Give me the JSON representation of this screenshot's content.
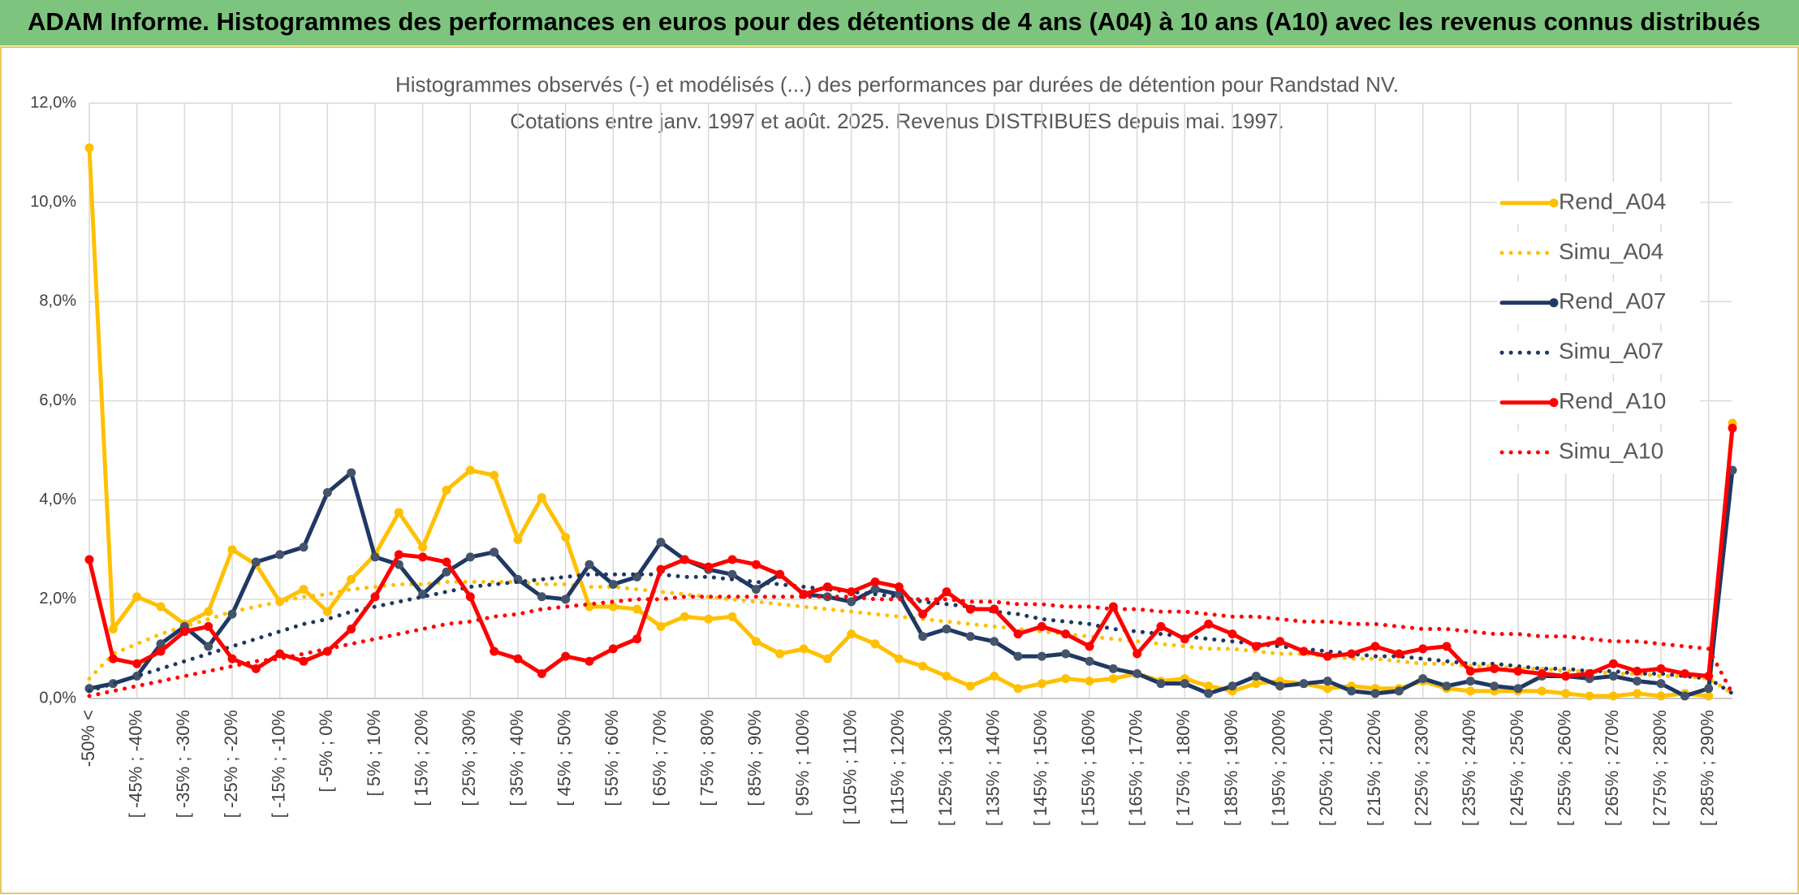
{
  "header": {
    "title": "ADAM Informe. Histogrammes des performances en euros pour des détentions de 4 ans (A04) à 10 ans (A10) avec les revenus connus distribués"
  },
  "chart_data": {
    "type": "line",
    "title": "Histogrammes observés (-) et modélisés (...) des performances par durées de détention pour Randstad NV.",
    "subtitle": "Cotations entre janv. 1997 et août. 2025. Revenus DISTRIBUES depuis mai. 1997.",
    "categories": [
      "-50% <",
      null,
      "[ -45% ; -40%",
      null,
      "[ -35% ; -30%",
      null,
      "[ -25% ; -20%",
      null,
      "[ -15% ; -10%",
      null,
      "[ -5% ; 0%",
      null,
      "[ 5% ; 10%",
      null,
      "[ 15% ; 20%",
      null,
      "[ 25% ; 30%",
      null,
      "[ 35% ; 40%",
      null,
      "[ 45% ; 50%",
      null,
      "[ 55% ; 60%",
      null,
      "[ 65% ; 70%",
      null,
      "[ 75% ; 80%",
      null,
      "[ 85% ; 90%",
      null,
      "[ 95% ; 100%",
      null,
      "[ 105% ; 110%",
      null,
      "[ 115% ; 120%",
      null,
      "[ 125% ; 130%",
      null,
      "[ 135% ; 140%",
      null,
      "[ 145% ; 150%",
      null,
      "[ 155% ; 160%",
      null,
      "[ 165% ; 170%",
      null,
      "[ 175% ; 180%",
      null,
      "[ 185% ; 190%",
      null,
      "[ 195% ; 200%",
      null,
      "[ 205% ; 210%",
      null,
      "[ 215% ; 220%",
      null,
      "[ 225% ; 230%",
      null,
      "[ 235% ; 240%",
      null,
      "[ 245% ; 250%",
      null,
      "[ 255% ; 260%",
      null,
      "[ 265% ; 270%",
      null,
      "[ 275% ; 280%",
      null,
      "[ 285% ; 290%",
      null
    ],
    "ylim": [
      0,
      12
    ],
    "yticks": [
      {
        "value": 0,
        "label": "0,0%"
      },
      {
        "value": 2,
        "label": "2,0%"
      },
      {
        "value": 4,
        "label": "4,0%"
      },
      {
        "value": 6,
        "label": "6,0%"
      },
      {
        "value": 8,
        "label": "8,0%"
      },
      {
        "value": 10,
        "label": "10,0%"
      },
      {
        "value": 12,
        "label": "12,0%"
      }
    ],
    "grid": true,
    "legend": "right",
    "series": [
      {
        "name": "Rend_A04",
        "color": "#ffc000",
        "style": "solid",
        "values": [
          11.1,
          1.4,
          2.05,
          1.85,
          1.5,
          1.75,
          3.0,
          2.7,
          1.95,
          2.2,
          1.75,
          2.4,
          2.9,
          3.75,
          3.05,
          4.2,
          4.6,
          4.5,
          3.2,
          4.05,
          3.25,
          1.85,
          1.85,
          1.8,
          1.45,
          1.65,
          1.6,
          1.65,
          1.15,
          0.9,
          1.0,
          0.8,
          1.3,
          1.1,
          0.8,
          0.65,
          0.45,
          0.25,
          0.45,
          0.2,
          0.3,
          0.4,
          0.35,
          0.4,
          0.5,
          0.35,
          0.4,
          0.25,
          0.15,
          0.3,
          0.35,
          0.3,
          0.2,
          0.25,
          0.2,
          0.2,
          0.35,
          0.2,
          0.15,
          0.15,
          0.15,
          0.15,
          0.1,
          0.05,
          0.05,
          0.1,
          0.05,
          0.1,
          0.05,
          5.55
        ]
      },
      {
        "name": "Simu_A04",
        "color": "#ffc000",
        "style": "dotted",
        "values": [
          0.4,
          0.9,
          1.1,
          1.3,
          1.45,
          1.6,
          1.75,
          1.85,
          1.95,
          2.05,
          2.1,
          2.2,
          2.25,
          2.3,
          2.3,
          2.35,
          2.35,
          2.35,
          2.35,
          2.3,
          2.3,
          2.25,
          2.25,
          2.2,
          2.15,
          2.1,
          2.05,
          2.0,
          1.95,
          1.9,
          1.85,
          1.8,
          1.75,
          1.7,
          1.65,
          1.6,
          1.55,
          1.5,
          1.45,
          1.4,
          1.35,
          1.3,
          1.25,
          1.2,
          1.15,
          1.1,
          1.05,
          1.0,
          1.0,
          0.95,
          0.9,
          0.9,
          0.85,
          0.8,
          0.8,
          0.75,
          0.7,
          0.7,
          0.65,
          0.65,
          0.6,
          0.6,
          0.55,
          0.55,
          0.5,
          0.5,
          0.45,
          0.45,
          0.4,
          0.1
        ]
      },
      {
        "name": "Rend_A07",
        "color": "#1f3864",
        "style": "solid",
        "values": [
          0.2,
          0.3,
          0.45,
          1.1,
          1.45,
          1.05,
          1.7,
          2.75,
          2.9,
          3.05,
          4.15,
          4.55,
          2.85,
          2.7,
          2.1,
          2.55,
          2.85,
          2.95,
          2.4,
          2.05,
          2.0,
          2.7,
          2.3,
          2.45,
          3.15,
          2.8,
          2.6,
          2.5,
          2.2,
          2.5,
          2.1,
          2.05,
          1.95,
          2.2,
          2.1,
          1.25,
          1.4,
          1.25,
          1.15,
          0.85,
          0.85,
          0.9,
          0.75,
          0.6,
          0.5,
          0.3,
          0.3,
          0.1,
          0.25,
          0.45,
          0.25,
          0.3,
          0.35,
          0.15,
          0.1,
          0.15,
          0.4,
          0.25,
          0.35,
          0.25,
          0.2,
          0.45,
          0.45,
          0.4,
          0.45,
          0.35,
          0.3,
          0.05,
          0.2,
          4.6
        ]
      },
      {
        "name": "Simu_A07",
        "color": "#1f3864",
        "style": "dotted",
        "values": [
          0.15,
          0.3,
          0.45,
          0.6,
          0.75,
          0.9,
          1.05,
          1.2,
          1.35,
          1.5,
          1.6,
          1.75,
          1.85,
          1.95,
          2.05,
          2.15,
          2.25,
          2.3,
          2.35,
          2.4,
          2.45,
          2.5,
          2.5,
          2.5,
          2.5,
          2.45,
          2.45,
          2.4,
          2.35,
          2.3,
          2.25,
          2.2,
          2.15,
          2.1,
          2.05,
          1.95,
          1.9,
          1.85,
          1.75,
          1.7,
          1.6,
          1.55,
          1.5,
          1.4,
          1.35,
          1.3,
          1.25,
          1.2,
          1.15,
          1.1,
          1.05,
          1.0,
          0.95,
          0.9,
          0.85,
          0.85,
          0.8,
          0.75,
          0.7,
          0.7,
          0.65,
          0.6,
          0.6,
          0.55,
          0.55,
          0.5,
          0.5,
          0.45,
          0.4,
          0.1
        ]
      },
      {
        "name": "Rend_A10",
        "color": "#ff0000",
        "style": "solid",
        "values": [
          2.8,
          0.8,
          0.7,
          0.95,
          1.35,
          1.45,
          0.8,
          0.6,
          0.9,
          0.75,
          0.95,
          1.4,
          2.05,
          2.9,
          2.85,
          2.75,
          2.05,
          0.95,
          0.8,
          0.5,
          0.85,
          0.75,
          1.0,
          1.2,
          2.6,
          2.8,
          2.65,
          2.8,
          2.7,
          2.5,
          2.1,
          2.25,
          2.15,
          2.35,
          2.25,
          1.7,
          2.15,
          1.8,
          1.8,
          1.3,
          1.45,
          1.3,
          1.05,
          1.85,
          0.9,
          1.45,
          1.2,
          1.5,
          1.3,
          1.05,
          1.15,
          0.95,
          0.85,
          0.9,
          1.05,
          0.9,
          1.0,
          1.05,
          0.55,
          0.6,
          0.55,
          0.5,
          0.45,
          0.5,
          0.7,
          0.55,
          0.6,
          0.5,
          0.45,
          5.45
        ]
      },
      {
        "name": "Simu_A10",
        "color": "#ff0000",
        "style": "dotted",
        "values": [
          0.05,
          0.15,
          0.25,
          0.35,
          0.45,
          0.55,
          0.65,
          0.75,
          0.8,
          0.9,
          1.0,
          1.1,
          1.2,
          1.3,
          1.4,
          1.5,
          1.55,
          1.65,
          1.7,
          1.8,
          1.85,
          1.9,
          1.95,
          2.0,
          2.0,
          2.05,
          2.05,
          2.05,
          2.05,
          2.05,
          2.05,
          2.05,
          2.05,
          2.0,
          2.0,
          2.0,
          2.0,
          1.95,
          1.95,
          1.9,
          1.9,
          1.85,
          1.85,
          1.8,
          1.8,
          1.75,
          1.75,
          1.7,
          1.65,
          1.65,
          1.6,
          1.55,
          1.55,
          1.5,
          1.5,
          1.45,
          1.4,
          1.4,
          1.35,
          1.3,
          1.3,
          1.25,
          1.25,
          1.2,
          1.15,
          1.15,
          1.1,
          1.05,
          1.0,
          0.1
        ]
      }
    ]
  }
}
